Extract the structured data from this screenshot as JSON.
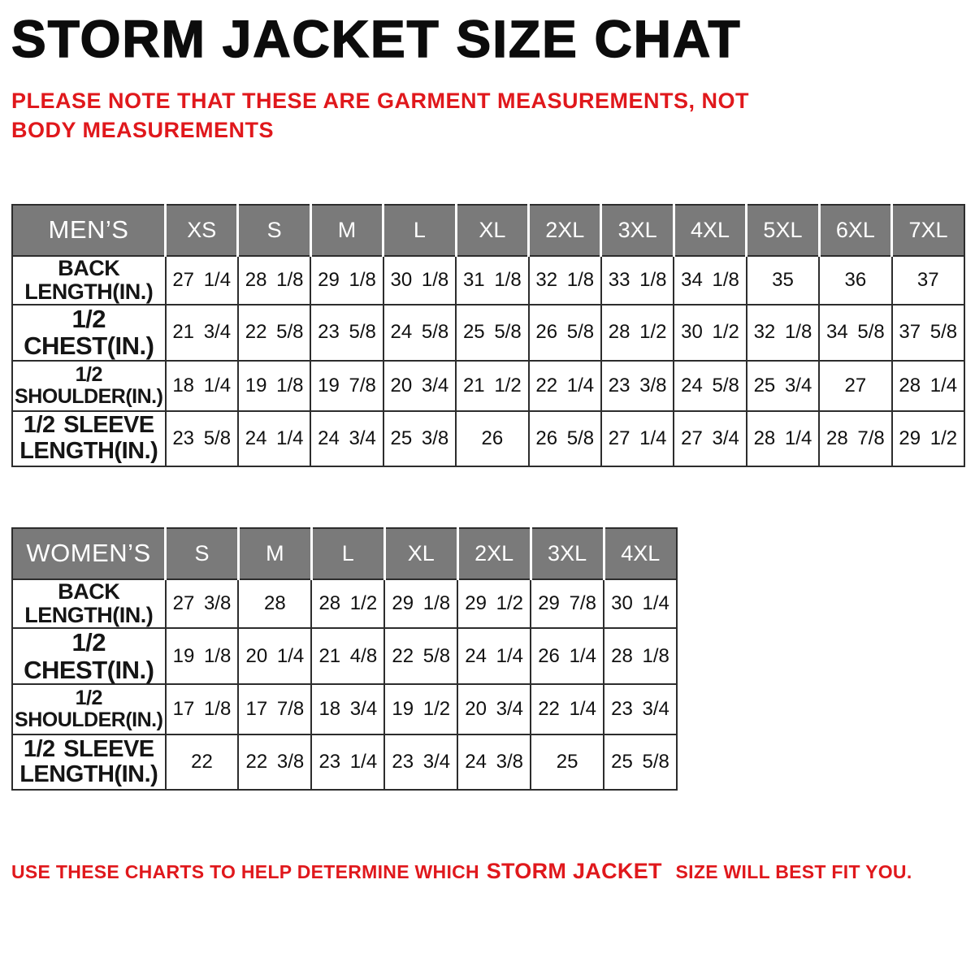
{
  "page": {
    "title": "STORM JACKET SIZE CHAT",
    "note": "PLEASE NOTE THAT THESE ARE GARMENT MEASUREMENTS, NOT BODY MEASUREMENTS",
    "footer": {
      "pre": "USE THESE CHARTS TO HELP DETERMINE WHICH",
      "brand": "STORM JACKET",
      "post": "SIZE WILL BEST FIT YOU."
    },
    "colors": {
      "accent_red": "#e0181c",
      "header_gray": "#7a7a7a",
      "border_dark": "#2d2d2d",
      "title_black": "#0c0c0c"
    }
  },
  "mens_table": {
    "corner": "MEN’S",
    "sizes": [
      "XS",
      "S",
      "M",
      "L",
      "XL",
      "2XL",
      "3XL",
      "4XL",
      "5XL",
      "6XL",
      "7XL"
    ],
    "rows": [
      {
        "label_lines": [
          "BACK",
          "LENGTH(IN.)"
        ],
        "values": [
          "27 1/4",
          "28 1/8",
          "29 1/8",
          "30 1/8",
          "31 1/8",
          "32 1/8",
          "33 1/8",
          "34 1/8",
          "35",
          "36",
          "37"
        ]
      },
      {
        "label_lines": [
          "1/2 CHEST(IN.)"
        ],
        "values": [
          "21 3/4",
          "22 5/8",
          "23 5/8",
          "24 5/8",
          "25 5/8",
          "26 5/8",
          "28 1/2",
          "30 1/2",
          "32 1/8",
          "34 5/8",
          "37 5/8"
        ]
      },
      {
        "label_lines": [
          "1/2 SHOULDER(IN.)"
        ],
        "values": [
          "18 1/4",
          "19 1/8",
          "19 7/8",
          "20 3/4",
          "21 1/2",
          "22 1/4",
          "23 3/8",
          "24 5/8",
          "25 3/4",
          "27",
          "28 1/4"
        ]
      },
      {
        "label_lines": [
          "1/2 SLEEVE",
          "LENGTH(IN.)"
        ],
        "values": [
          "23 5/8",
          "24 1/4",
          "24 3/4",
          "25 3/8",
          "26",
          "26 5/8",
          "27 1/4",
          "27 3/4",
          "28 1/4",
          "28 7/8",
          "29 1/2"
        ]
      }
    ]
  },
  "womens_table": {
    "corner": "WOMEN’S",
    "sizes": [
      "S",
      "M",
      "L",
      "XL",
      "2XL",
      "3XL",
      "4XL"
    ],
    "rows": [
      {
        "label_lines": [
          "BACK",
          "LENGTH(IN.)"
        ],
        "values": [
          "27 3/8",
          "28",
          "28 1/2",
          "29 1/8",
          "29 1/2",
          "29 7/8",
          "30 1/4"
        ]
      },
      {
        "label_lines": [
          "1/2 CHEST(IN.)"
        ],
        "values": [
          "19 1/8",
          "20 1/4",
          "21 4/8",
          "22 5/8",
          "24 1/4",
          "26 1/4",
          "28 1/8"
        ]
      },
      {
        "label_lines": [
          "1/2 SHOULDER(IN.)"
        ],
        "values": [
          "17 1/8",
          "17 7/8",
          "18 3/4",
          "19 1/2",
          "20 3/4",
          "22 1/4",
          "23 3/4"
        ]
      },
      {
        "label_lines": [
          "1/2 SLEEVE",
          "LENGTH(IN.)"
        ],
        "values": [
          "22",
          "22 3/8",
          "23 1/4",
          "23 3/4",
          "24 3/8",
          "25",
          "25 5/8"
        ]
      }
    ]
  }
}
